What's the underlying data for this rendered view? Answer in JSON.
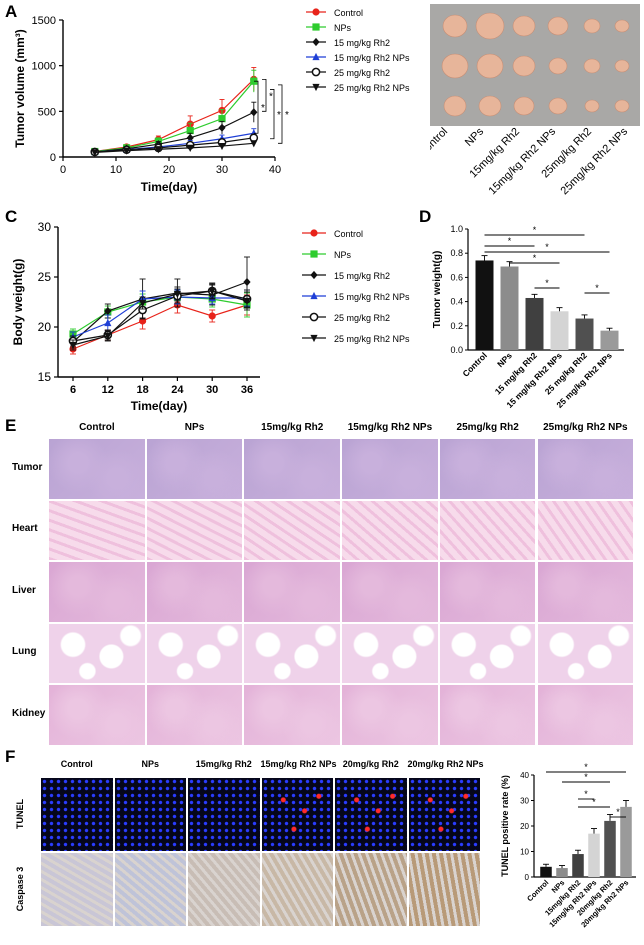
{
  "panels": {
    "A": "A",
    "B": "B",
    "C": "C",
    "D": "D",
    "E": "E",
    "F": "F"
  },
  "colors": {
    "control": "#e8231a",
    "nps": "#2ecc2e",
    "rh2_15": "#111111",
    "rh2_15_nps": "#1f3fd6",
    "rh2_25": "#111111",
    "rh2_25_nps": "#111111"
  },
  "chart_data": [
    {
      "id": "A",
      "type": "line",
      "xlabel": "Time(day)",
      "ylabel": "Tumor volume (mm³)",
      "x": [
        6,
        12,
        18,
        24,
        30,
        36
      ],
      "xlim": [
        0,
        40
      ],
      "ylim": [
        0,
        1500
      ],
      "xticks": [
        "0",
        "10",
        "20",
        "30",
        "40"
      ],
      "yticks": [
        "0",
        "500",
        "1000",
        "1500"
      ],
      "series": [
        {
          "name": "Control",
          "marker": "circle",
          "values": [
            60,
            110,
            190,
            360,
            510,
            850
          ],
          "errors": [
            10,
            20,
            40,
            90,
            120,
            130
          ]
        },
        {
          "name": "NPs",
          "marker": "square",
          "values": [
            60,
            100,
            170,
            290,
            420,
            830
          ],
          "errors": [
            10,
            20,
            40,
            80,
            100,
            120
          ]
        },
        {
          "name": "15 mg/kg Rh2",
          "marker": "diamond",
          "values": [
            55,
            90,
            140,
            210,
            320,
            490
          ],
          "errors": [
            10,
            15,
            30,
            50,
            70,
            110
          ]
        },
        {
          "name": "15 mg/kg Rh2 NPs",
          "marker": "triangle",
          "values": [
            55,
            80,
            110,
            150,
            200,
            260
          ],
          "errors": [
            8,
            12,
            20,
            30,
            40,
            50
          ]
        },
        {
          "name": "25 mg/kg Rh2",
          "marker": "open-circle",
          "values": [
            55,
            80,
            100,
            130,
            160,
            210
          ],
          "errors": [
            8,
            10,
            15,
            25,
            30,
            40
          ]
        },
        {
          "name": "25 mg/kg Rh2 NPs",
          "marker": "down-triangle",
          "values": [
            50,
            70,
            85,
            100,
            120,
            150
          ],
          "errors": [
            5,
            10,
            12,
            15,
            20,
            25
          ]
        }
      ],
      "annotations": [
        "*",
        "*",
        "*",
        "*"
      ]
    },
    {
      "id": "C",
      "type": "line",
      "xlabel": "Time(day)",
      "ylabel": "Body weight(g)",
      "categories": [
        "6",
        "12",
        "18",
        "24",
        "30",
        "36"
      ],
      "ylim": [
        15,
        30
      ],
      "yticks": [
        "15",
        "20",
        "25",
        "30"
      ],
      "series": [
        {
          "name": "Control",
          "marker": "circle",
          "values": [
            17.8,
            19.2,
            20.6,
            22.2,
            21.1,
            22.2
          ],
          "errors": [
            0.5,
            0.5,
            0.8,
            0.8,
            0.6,
            1.0
          ]
        },
        {
          "name": "NPs",
          "marker": "square",
          "values": [
            19.3,
            21.5,
            22.5,
            23.0,
            22.8,
            22.2
          ],
          "errors": [
            0.5,
            0.6,
            0.8,
            0.7,
            0.8,
            1.2
          ]
        },
        {
          "name": "15 mg/kg Rh2",
          "marker": "diamond",
          "values": [
            18.5,
            21.6,
            22.8,
            23.4,
            23.2,
            24.5
          ],
          "errors": [
            0.6,
            0.7,
            2.0,
            1.4,
            1.0,
            2.5
          ]
        },
        {
          "name": "15 mg/kg Rh2 NPs",
          "marker": "triangle",
          "values": [
            19.0,
            20.4,
            22.8,
            23.0,
            22.9,
            22.9
          ],
          "errors": [
            0.5,
            0.8,
            0.8,
            0.7,
            0.6,
            0.8
          ]
        },
        {
          "name": "25 mg/kg Rh2",
          "marker": "open-circle",
          "values": [
            18.6,
            19.2,
            21.7,
            23.1,
            23.6,
            22.8
          ],
          "errors": [
            0.5,
            0.5,
            0.8,
            0.7,
            0.8,
            0.9
          ]
        },
        {
          "name": "25 mg/kg Rh2 NPs",
          "marker": "down-triangle",
          "values": [
            18.2,
            19.1,
            22.4,
            23.3,
            23.6,
            22.6
          ],
          "errors": [
            0.5,
            0.5,
            0.6,
            0.7,
            0.7,
            0.9
          ]
        }
      ]
    },
    {
      "id": "D",
      "type": "bar",
      "ylabel": "Tumor weight(g)",
      "categories": [
        "Control",
        "NPs",
        "15 mg/kg Rh2",
        "15 mg/kg Rh2 NPs",
        "25 mg/kg Rh2",
        "25 mg/kg Rh2 NPs"
      ],
      "values": [
        0.74,
        0.69,
        0.43,
        0.32,
        0.26,
        0.16
      ],
      "errors": [
        0.04,
        0.04,
        0.03,
        0.03,
        0.03,
        0.02
      ],
      "bar_colors": [
        "#111111",
        "#8c8c8c",
        "#404040",
        "#d4d4d4",
        "#505050",
        "#9a9a9a"
      ],
      "ylim": [
        0,
        1.0
      ],
      "yticks": [
        "0.0",
        "0.2",
        "0.4",
        "0.6",
        "0.8",
        "1.0"
      ],
      "sig_brackets": [
        {
          "from": 0,
          "to": 4,
          "label": "*"
        },
        {
          "from": 0,
          "to": 2,
          "label": "*"
        },
        {
          "from": 0,
          "to": 5,
          "label": "*"
        },
        {
          "from": 1,
          "to": 3,
          "label": "*"
        },
        {
          "from": 2,
          "to": 3,
          "label": "*"
        },
        {
          "from": 4,
          "to": 5,
          "label": "*"
        }
      ]
    },
    {
      "id": "F",
      "type": "bar",
      "ylabel": "TUNEL positive rate (%)",
      "categories": [
        "Control",
        "NPs",
        "15mg/kg Rh2",
        "15mg/kg Rh2 NPs",
        "20mg/kg Rh2",
        "20mg/kg Rh2 NPs"
      ],
      "values": [
        4,
        3.5,
        9,
        17,
        22,
        27.5
      ],
      "errors": [
        1,
        1,
        1.5,
        2,
        2.5,
        2.5
      ],
      "bar_colors": [
        "#111111",
        "#8c8c8c",
        "#404040",
        "#d4d4d4",
        "#505050",
        "#9a9a9a"
      ],
      "ylim": [
        0,
        40
      ],
      "yticks": [
        "0",
        "10",
        "20",
        "30",
        "40"
      ],
      "sig_brackets": [
        {
          "from": 0,
          "to": 5,
          "label": "*"
        },
        {
          "from": 1,
          "to": 4,
          "label": "*"
        },
        {
          "from": 2,
          "to": 3,
          "label": "*"
        },
        {
          "from": 2,
          "to": 4,
          "label": "*"
        },
        {
          "from": 4,
          "to": 5,
          "label": "*"
        }
      ]
    }
  ],
  "panelB": {
    "labels": [
      "Control",
      "NPs",
      "15mg/kg Rh2",
      "15mg/kg Rh2 NPs",
      "25mg/kg Rh2",
      "25mg/kg Rh2 NPs"
    ]
  },
  "panelE": {
    "columns": [
      "Control",
      "NPs",
      "15mg/kg Rh2",
      "15mg/kg Rh2 NPs",
      "25mg/kg Rh2",
      "25mg/kg Rh2 NPs"
    ],
    "rows": [
      "Tumor",
      "Heart",
      "Liver",
      "Lung",
      "Kidney"
    ]
  },
  "panelF": {
    "columns": [
      "Control",
      "NPs",
      "15mg/kg Rh2",
      "15mg/kg Rh2 NPs",
      "20mg/kg Rh2",
      "20mg/kg Rh2 NPs"
    ],
    "rows": [
      "TUNEL",
      "Caspase 3"
    ]
  }
}
